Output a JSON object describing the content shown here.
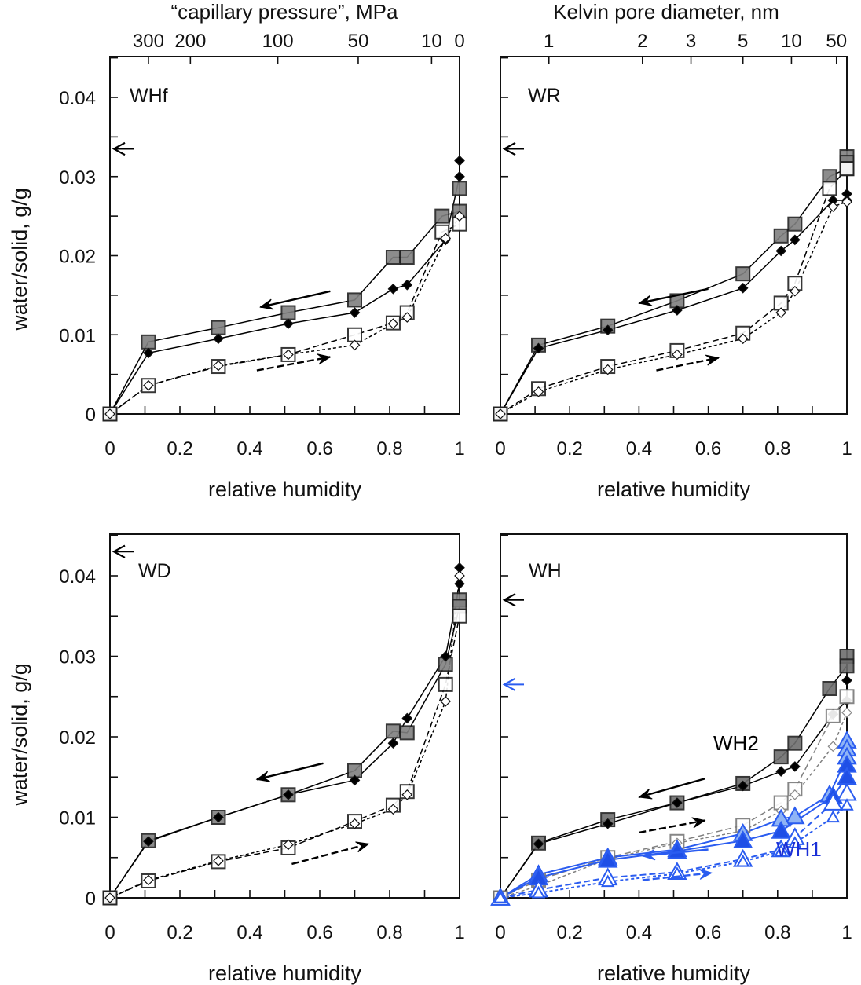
{
  "figure": {
    "top_axis_labels": {
      "left": "“capillary pressure”,  MPa",
      "right": "Kelvin pore diameter,  nm"
    },
    "y_axis_label": "water/solid,  g/g",
    "x_axis_label": "relative humidity"
  },
  "chart_data": [
    {
      "type": "line",
      "panel": "top-left",
      "title": "WHf",
      "xlabel": "relative humidity",
      "ylabel": "water/solid,  g/g",
      "xlim": [
        0,
        1
      ],
      "ylim": [
        0,
        0.045
      ],
      "x_ticks": [
        "0",
        "0.2",
        "0.4",
        "0.6",
        "0.8",
        "1"
      ],
      "y_ticks": [
        "0",
        "0.01",
        "0.02",
        "0.03",
        "0.04"
      ],
      "secondary_x_axis": {
        "label": "“capillary pressure”,  MPa",
        "ticks": [
          {
            "label": "300",
            "rh": 0.11
          },
          {
            "label": "200",
            "rh": 0.23
          },
          {
            "label": "100",
            "rh": 0.48
          },
          {
            "label": "50",
            "rh": 0.71
          },
          {
            "label": "10",
            "rh": 0.92
          },
          {
            "label": "0",
            "rh": 1.0
          }
        ]
      },
      "annotations": [
        {
          "text": "WHf",
          "type": "panel-label"
        },
        {
          "type": "arrow-left",
          "y": 0.0335,
          "color": "#000000",
          "note": "reference level at y-axis"
        },
        {
          "type": "arrow-left",
          "from_x": 0.63,
          "to_x": 0.43,
          "y_from": 0.0155,
          "y_to": 0.0135,
          "style": "solid",
          "meaning": "desorption"
        },
        {
          "type": "arrow-right",
          "from_x": 0.42,
          "to_x": 0.63,
          "y_from": 0.0055,
          "y_to": 0.0072,
          "style": "dashed",
          "meaning": "adsorption"
        }
      ],
      "series": [
        {
          "name": "desorption run A",
          "marker": "filled-square",
          "line": "solid",
          "color": "#000000",
          "fill": "#808080",
          "x": [
            1.0,
            1.0,
            0.95,
            0.85,
            0.81,
            0.7,
            0.51,
            0.31,
            0.11,
            0.0
          ],
          "y": [
            0.0285,
            0.0256,
            0.025,
            0.0198,
            0.0198,
            0.0144,
            0.0128,
            0.0109,
            0.0091,
            0.0
          ]
        },
        {
          "name": "desorption run B",
          "marker": "filled-diamond",
          "line": "solid",
          "color": "#000000",
          "fill": "#000000",
          "x": [
            1.0,
            1.0,
            0.96,
            0.85,
            0.81,
            0.7,
            0.51,
            0.31,
            0.11,
            0.0
          ],
          "y": [
            0.032,
            0.03,
            0.022,
            0.0163,
            0.0158,
            0.0128,
            0.0114,
            0.0095,
            0.0077,
            0.0
          ]
        },
        {
          "name": "adsorption run A",
          "marker": "open-square",
          "line": "dashed",
          "color": "#000000",
          "fill": "#ffffff",
          "x": [
            0.0,
            0.11,
            0.31,
            0.51,
            0.7,
            0.81,
            0.85,
            0.95,
            1.0
          ],
          "y": [
            0.0,
            0.0036,
            0.006,
            0.0075,
            0.01,
            0.0115,
            0.0128,
            0.023,
            0.024
          ]
        },
        {
          "name": "adsorption run B",
          "marker": "open-diamond",
          "line": "dotted",
          "color": "#000000",
          "fill": "#ffffff",
          "x": [
            0.0,
            0.11,
            0.31,
            0.51,
            0.7,
            0.81,
            0.85,
            0.96,
            1.0
          ],
          "y": [
            0.0,
            0.0036,
            0.0061,
            0.0075,
            0.0087,
            0.0114,
            0.0122,
            0.0222,
            0.025
          ]
        }
      ]
    },
    {
      "type": "line",
      "panel": "top-right",
      "title": "WR",
      "xlabel": "relative humidity",
      "ylabel": "",
      "xlim": [
        0,
        1
      ],
      "ylim": [
        0,
        0.045
      ],
      "x_ticks": [
        "0",
        "0.2",
        "0.4",
        "0.6",
        "0.8",
        "1"
      ],
      "y_ticks": [],
      "secondary_x_axis": {
        "label": "Kelvin pore diameter,  nm",
        "ticks": [
          {
            "label": "1",
            "rh": 0.14
          },
          {
            "label": "2",
            "rh": 0.41
          },
          {
            "label": "3",
            "rh": 0.55
          },
          {
            "label": "5",
            "rh": 0.7
          },
          {
            "label": "10",
            "rh": 0.84
          },
          {
            "label": "50",
            "rh": 0.97
          }
        ]
      },
      "annotations": [
        {
          "text": "WR",
          "type": "panel-label"
        },
        {
          "type": "arrow-left",
          "y": 0.0335,
          "color": "#000000"
        },
        {
          "type": "arrow-left",
          "from_x": 0.6,
          "to_x": 0.4,
          "y_from": 0.0158,
          "y_to": 0.014,
          "style": "solid",
          "meaning": "desorption"
        },
        {
          "type": "arrow-right",
          "from_x": 0.45,
          "to_x": 0.63,
          "y_from": 0.0055,
          "y_to": 0.0071,
          "style": "dashed",
          "meaning": "adsorption"
        }
      ],
      "series": [
        {
          "name": "desorption run A",
          "marker": "filled-square",
          "line": "solid",
          "color": "#000000",
          "fill": "#808080",
          "x": [
            1.0,
            1.0,
            1.0,
            0.95,
            0.85,
            0.81,
            0.7,
            0.51,
            0.31,
            0.11,
            0.0
          ],
          "y": [
            0.0325,
            0.0318,
            0.031,
            0.03,
            0.024,
            0.0225,
            0.0177,
            0.0143,
            0.0111,
            0.0087,
            0.0
          ]
        },
        {
          "name": "desorption run B",
          "marker": "filled-diamond",
          "line": "solid",
          "color": "#000000",
          "fill": "#000000",
          "x": [
            1.0,
            1.0,
            0.96,
            0.85,
            0.81,
            0.7,
            0.51,
            0.31,
            0.11,
            0.0
          ],
          "y": [
            0.0278,
            0.027,
            0.027,
            0.022,
            0.0206,
            0.0159,
            0.0131,
            0.0106,
            0.0083,
            0.0
          ]
        },
        {
          "name": "adsorption run A",
          "marker": "open-square",
          "line": "dashed",
          "color": "#000000",
          "fill": "#ffffff",
          "x": [
            0.0,
            0.11,
            0.31,
            0.51,
            0.7,
            0.81,
            0.85,
            0.95,
            1.0
          ],
          "y": [
            0.0,
            0.0032,
            0.006,
            0.008,
            0.0102,
            0.014,
            0.0165,
            0.0285,
            0.031
          ]
        },
        {
          "name": "adsorption run B",
          "marker": "open-diamond",
          "line": "dotted",
          "color": "#000000",
          "fill": "#ffffff",
          "x": [
            0.0,
            0.11,
            0.31,
            0.51,
            0.7,
            0.81,
            0.85,
            0.96,
            1.0
          ],
          "y": [
            0.0,
            0.0028,
            0.0056,
            0.0075,
            0.0095,
            0.0128,
            0.0155,
            0.0262,
            0.0268
          ]
        }
      ]
    },
    {
      "type": "line",
      "panel": "bottom-left",
      "title": "WD",
      "xlabel": "relative humidity",
      "ylabel": "water/solid,  g/g",
      "xlim": [
        0,
        1
      ],
      "ylim": [
        0,
        0.045
      ],
      "x_ticks": [
        "0",
        "0.2",
        "0.4",
        "0.6",
        "0.8",
        "1"
      ],
      "y_ticks": [
        "0",
        "0.01",
        "0.02",
        "0.03",
        "0.04"
      ],
      "annotations": [
        {
          "text": "WD",
          "type": "panel-label"
        },
        {
          "type": "arrow-left",
          "y": 0.043,
          "color": "#000000"
        },
        {
          "type": "arrow-left",
          "from_x": 0.61,
          "to_x": 0.42,
          "y_from": 0.0167,
          "y_to": 0.0147,
          "style": "solid",
          "meaning": "desorption"
        },
        {
          "type": "arrow-right",
          "from_x": 0.52,
          "to_x": 0.74,
          "y_from": 0.0042,
          "y_to": 0.0067,
          "style": "dashed",
          "meaning": "adsorption"
        }
      ],
      "series": [
        {
          "name": "desorption run A",
          "marker": "filled-square",
          "line": "solid",
          "color": "#000000",
          "fill": "#808080",
          "x": [
            1.0,
            1.0,
            0.96,
            0.85,
            0.81,
            0.7,
            0.51,
            0.31,
            0.11,
            0.0
          ],
          "y": [
            0.037,
            0.0362,
            0.029,
            0.0205,
            0.0207,
            0.0158,
            0.0128,
            0.01,
            0.0071,
            0.0
          ]
        },
        {
          "name": "desorption run B",
          "marker": "filled-diamond",
          "line": "solid",
          "color": "#000000",
          "fill": "#000000",
          "x": [
            1.0,
            1.0,
            0.96,
            0.85,
            0.81,
            0.7,
            0.51,
            0.31,
            0.11,
            0.0
          ],
          "y": [
            0.041,
            0.039,
            0.03,
            0.0223,
            0.0192,
            0.0146,
            0.0128,
            0.01,
            0.007,
            0.0
          ]
        },
        {
          "name": "adsorption run A",
          "marker": "open-square",
          "line": "dashed",
          "color": "#000000",
          "fill": "#ffffff",
          "x": [
            0.0,
            0.11,
            0.31,
            0.51,
            0.7,
            0.81,
            0.85,
            0.96,
            1.0
          ],
          "y": [
            0.0,
            0.0021,
            0.0045,
            0.0062,
            0.0095,
            0.0115,
            0.0132,
            0.0265,
            0.035
          ]
        },
        {
          "name": "adsorption run B",
          "marker": "open-diamond",
          "line": "dotted",
          "color": "#000000",
          "fill": "#ffffff",
          "x": [
            0.0,
            0.11,
            0.31,
            0.51,
            0.7,
            0.81,
            0.85,
            0.96,
            1.0
          ],
          "y": [
            0.0,
            0.0022,
            0.0046,
            0.0066,
            0.0092,
            0.011,
            0.0128,
            0.0244,
            0.04
          ]
        }
      ]
    },
    {
      "type": "line",
      "panel": "bottom-right",
      "title": "WH",
      "xlabel": "relative humidity",
      "ylabel": "",
      "xlim": [
        0,
        1
      ],
      "ylim": [
        0,
        0.045
      ],
      "x_ticks": [
        "0",
        "0.2",
        "0.4",
        "0.6",
        "0.8",
        "1"
      ],
      "y_ticks": [],
      "annotations": [
        {
          "text": "WH",
          "type": "panel-label"
        },
        {
          "text": "WH2",
          "type": "series-label",
          "color": "#000000"
        },
        {
          "text": "WH1",
          "type": "series-label",
          "color": "#1a2fd6"
        },
        {
          "type": "arrow-left",
          "y": 0.037,
          "color": "#000000"
        },
        {
          "type": "arrow-left",
          "y": 0.0265,
          "color": "#2a5cf0"
        },
        {
          "type": "arrow-left",
          "from_x": 0.59,
          "to_x": 0.4,
          "y_from": 0.0148,
          "y_to": 0.0125,
          "style": "solid",
          "meaning": "WH2 desorption"
        },
        {
          "type": "arrow-right",
          "from_x": 0.4,
          "to_x": 0.59,
          "y_from": 0.0081,
          "y_to": 0.0096,
          "style": "dashed",
          "meaning": "WH2 adsorption"
        },
        {
          "type": "arrow-left",
          "from_x": 0.6,
          "to_x": 0.41,
          "y_from": 0.006,
          "y_to": 0.0052,
          "style": "solid",
          "color": "#2a5cf0",
          "meaning": "WH1 desorption"
        },
        {
          "type": "arrow-right",
          "from_x": 0.41,
          "to_x": 0.61,
          "y_from": 0.0022,
          "y_to": 0.0031,
          "style": "dashed",
          "color": "#2a5cf0",
          "meaning": "WH1 adsorption"
        }
      ],
      "series": [
        {
          "name": "WH2 desorption A",
          "marker": "filled-square",
          "line": "solid",
          "color": "#000000",
          "fill": "#6e6e6e",
          "x": [
            1.0,
            1.0,
            0.95,
            0.85,
            0.81,
            0.7,
            0.51,
            0.31,
            0.11,
            0.0
          ],
          "y": [
            0.03,
            0.0288,
            0.026,
            0.0192,
            0.0175,
            0.0142,
            0.0118,
            0.0097,
            0.0068,
            0.0
          ]
        },
        {
          "name": "WH2 desorption B",
          "marker": "filled-diamond",
          "line": "solid",
          "color": "#000000",
          "fill": "#000000",
          "x": [
            1.0,
            1.0,
            0.96,
            0.85,
            0.81,
            0.7,
            0.51,
            0.31,
            0.11,
            0.0
          ],
          "y": [
            0.027,
            0.0245,
            0.0228,
            0.0163,
            0.0157,
            0.0139,
            0.0118,
            0.0092,
            0.0067,
            0.0
          ]
        },
        {
          "name": "WH2 adsorption A",
          "marker": "open-square",
          "line": "dashed",
          "color": "#808080",
          "fill": "#ffffff",
          "x": [
            0.0,
            0.11,
            0.31,
            0.51,
            0.7,
            0.81,
            0.85,
            0.96,
            1.0
          ],
          "y": [
            0.0,
            0.0022,
            0.005,
            0.007,
            0.009,
            0.0118,
            0.0135,
            0.0226,
            0.025
          ]
        },
        {
          "name": "WH2 adsorption B",
          "marker": "open-diamond",
          "line": "dotted",
          "color": "#808080",
          "fill": "#ffffff",
          "x": [
            0.0,
            0.11,
            0.31,
            0.51,
            0.7,
            0.81,
            0.85,
            0.96,
            1.0
          ],
          "y": [
            0.0,
            0.0015,
            0.0048,
            0.0068,
            0.0083,
            0.0108,
            0.0128,
            0.0188,
            0.023
          ]
        },
        {
          "name": "WH1 desorption A",
          "marker": "filled-triangle-light",
          "line": "solid",
          "color": "#2a5cf0",
          "fill": "#8fb4f5",
          "x": [
            1.0,
            1.0,
            1.0,
            0.95,
            0.85,
            0.81,
            0.7,
            0.51,
            0.31,
            0.11,
            0.0
          ],
          "y": [
            0.0195,
            0.0185,
            0.0175,
            0.0128,
            0.0101,
            0.0098,
            0.008,
            0.006,
            0.005,
            0.0029,
            0.0
          ]
        },
        {
          "name": "WH1 desorption B",
          "marker": "filled-triangle",
          "line": "solid",
          "color": "#2a5cf0",
          "fill": "#1f4fe6",
          "x": [
            1.0,
            1.0,
            0.96,
            0.81,
            0.7,
            0.51,
            0.31,
            0.11,
            0.0
          ],
          "y": [
            0.0165,
            0.015,
            0.0126,
            0.0083,
            0.0071,
            0.0058,
            0.0047,
            0.0025,
            0.0
          ]
        },
        {
          "name": "WH1 adsorption A",
          "marker": "open-triangle",
          "line": "dashed",
          "color": "#2a5cf0",
          "fill": "#ffffff",
          "x": [
            0.0,
            0.11,
            0.31,
            0.51,
            0.7,
            0.81,
            0.85,
            0.96,
            1.0
          ],
          "y": [
            0.0,
            0.001,
            0.0025,
            0.0032,
            0.0048,
            0.006,
            0.0075,
            0.0118,
            0.013
          ]
        },
        {
          "name": "WH1 adsorption B",
          "marker": "open-triangle-small",
          "line": "dotted",
          "color": "#2a5cf0",
          "fill": "#ffffff",
          "x": [
            0.0,
            0.11,
            0.31,
            0.51,
            0.7,
            0.81,
            0.85,
            0.96,
            1.0
          ],
          "y": [
            0.0,
            0.0006,
            0.002,
            0.003,
            0.0045,
            0.0058,
            0.0068,
            0.01,
            0.0115
          ]
        }
      ]
    }
  ]
}
